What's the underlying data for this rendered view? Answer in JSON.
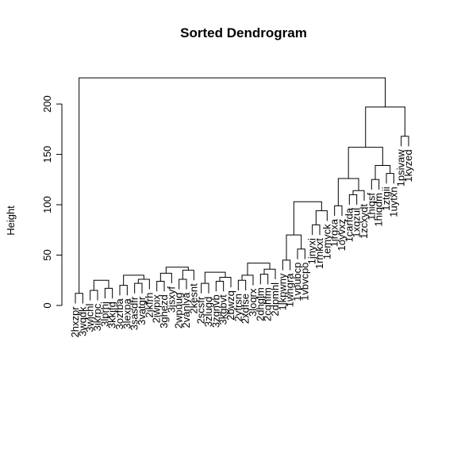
{
  "chart_data": {
    "type": "dendrogram",
    "title": "Sorted Dendrogram",
    "ylabel": "Height",
    "xlabel": "",
    "ylim": [
      0,
      230
    ],
    "yticks": [
      0,
      50,
      100,
      150,
      200
    ],
    "leaves": [
      "2hxzpr",
      "3wqdk",
      "3wjchl",
      "3ikrpc",
      "3lprhj",
      "3kkjfg",
      "3ozfba",
      "3lexpa",
      "3sasdfr",
      "3vatgr",
      "2jkfrh",
      "2iwpix",
      "3ghezd",
      "3jsxyf",
      "2wpuug",
      "2vanlya",
      "2kesnt",
      "2scsfr",
      "3zlugd",
      "3zgnvb",
      "3kgbvt",
      "2bwzq",
      "2yfrsn",
      "2xdfse",
      "3loqrx",
      "2dhglm",
      "2cqhfm",
      "2dpmhl",
      "1jkpwny",
      "1whgra",
      "1vpubcp",
      "1vbvcpo",
      "1jnyxi",
      "1rmkxt",
      "1emyck",
      "1jrgxa",
      "1oyvxz",
      "1carfda",
      "1xqzul",
      "1zcxydt",
      "1hiqsf",
      "1hiqdm",
      "1ztgii",
      "1uytxn",
      "1psivaw",
      "1kyzed"
    ],
    "merges": [
      [
        1,
        2,
        12
      ],
      [
        3,
        4,
        15
      ],
      [
        5,
        6,
        17
      ],
      [
        4,
        5,
        25
      ],
      [
        7,
        8,
        20
      ],
      [
        9,
        10,
        22
      ],
      [
        10,
        11,
        26
      ],
      [
        8,
        11,
        30
      ],
      [
        12,
        13,
        24
      ],
      [
        13,
        14,
        32
      ],
      [
        15,
        16,
        26
      ],
      [
        16,
        17,
        35
      ],
      [
        14,
        17,
        38
      ],
      [
        18,
        19,
        22
      ],
      [
        20,
        21,
        24
      ],
      [
        21,
        22,
        28
      ],
      [
        19,
        22,
        33
      ],
      [
        23,
        24,
        25
      ],
      [
        24,
        25,
        30
      ],
      [
        26,
        27,
        31
      ],
      [
        27,
        28,
        36
      ],
      [
        25,
        28,
        42
      ],
      [
        29,
        30,
        45
      ],
      [
        31,
        32,
        56
      ],
      [
        30,
        32,
        70
      ],
      [
        33,
        34,
        80
      ],
      [
        34,
        35,
        94
      ],
      [
        32,
        35,
        103
      ],
      [
        36,
        37,
        99
      ],
      [
        38,
        39,
        110
      ],
      [
        39,
        40,
        114
      ],
      [
        37,
        40,
        126
      ],
      [
        41,
        42,
        125
      ],
      [
        43,
        44,
        131
      ],
      [
        42,
        44,
        139
      ],
      [
        40,
        44,
        157
      ],
      [
        45,
        46,
        168
      ],
      [
        44,
        46,
        197
      ],
      [
        1,
        46,
        226
      ]
    ]
  }
}
